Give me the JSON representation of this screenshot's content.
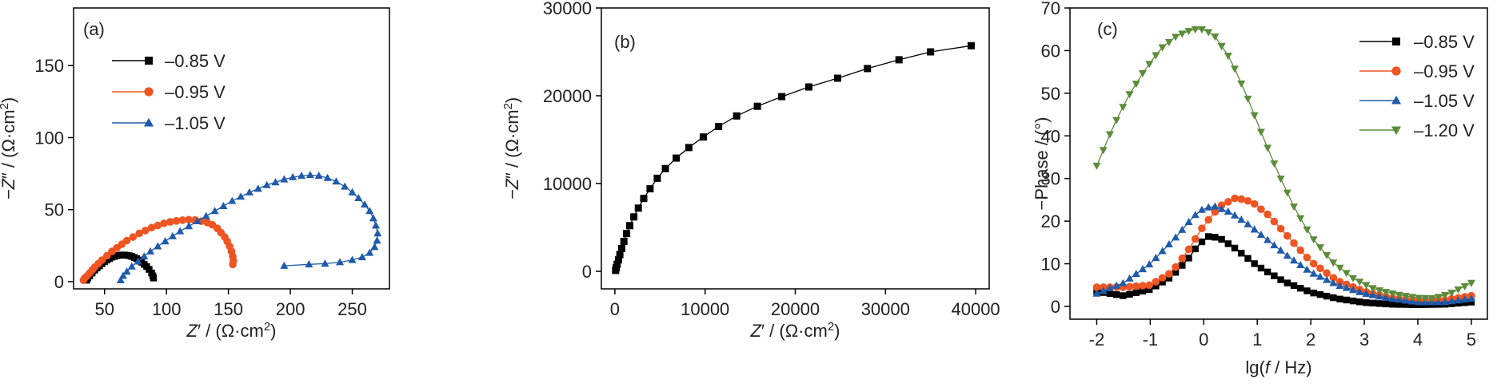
{
  "chart_data": [
    {
      "type": "scatter",
      "panel_label": "(a)",
      "xlabel_parts": [
        "Z",
        "′ / (Ω·cm",
        "2",
        ")"
      ],
      "ylabel_parts": [
        "−Z",
        "″ / (Ω·cm",
        "2",
        ")"
      ],
      "xlim": [
        25,
        280
      ],
      "ylim": [
        -5,
        190
      ],
      "xticks": [
        50,
        100,
        150,
        200,
        250
      ],
      "yticks": [
        0,
        50,
        100,
        150
      ],
      "legend_position": "top-left",
      "series": [
        {
          "name": "–0.85 V",
          "color": "#000000",
          "marker": "square",
          "points": [
            [
              35.5,
              1
            ],
            [
              36.5,
              2.5
            ],
            [
              38,
              4
            ],
            [
              40,
              6
            ],
            [
              42,
              8
            ],
            [
              44,
              9.5
            ],
            [
              46,
              11
            ],
            [
              48,
              12.5
            ],
            [
              50,
              14
            ],
            [
              52,
              15
            ],
            [
              54,
              16
            ],
            [
              56,
              17
            ],
            [
              58,
              17.5
            ],
            [
              60,
              18
            ],
            [
              62,
              18.3
            ],
            [
              64,
              18.5
            ],
            [
              66,
              18.5
            ],
            [
              68,
              18.3
            ],
            [
              70,
              18
            ],
            [
              72,
              17.5
            ],
            [
              74,
              16.8
            ],
            [
              76,
              16
            ],
            [
              78,
              15
            ],
            [
              80,
              13.5
            ],
            [
              82,
              12
            ],
            [
              84,
              10.5
            ],
            [
              86,
              8.5
            ],
            [
              88,
              6
            ],
            [
              89,
              4
            ],
            [
              89.5,
              2.5
            ]
          ]
        },
        {
          "name": "–0.95 V",
          "color": "#EE5522",
          "marker": "circle",
          "points": [
            [
              33,
              1
            ],
            [
              34,
              2.5
            ],
            [
              36,
              4
            ],
            [
              38,
              6
            ],
            [
              40,
              8
            ],
            [
              42,
              10
            ],
            [
              45,
              12.5
            ],
            [
              48,
              15
            ],
            [
              52,
              18
            ],
            [
              56,
              21
            ],
            [
              60,
              23.5
            ],
            [
              64,
              26
            ],
            [
              68,
              28.5
            ],
            [
              73,
              31
            ],
            [
              78,
              33.5
            ],
            [
              83,
              35.5
            ],
            [
              88,
              37.5
            ],
            [
              93,
              39
            ],
            [
              98,
              40.5
            ],
            [
              103,
              41.5
            ],
            [
              108,
              42.2
            ],
            [
              113,
              42.7
            ],
            [
              118,
              43
            ],
            [
              123,
              42.8
            ],
            [
              128,
              42
            ],
            [
              133,
              41
            ],
            [
              137,
              39.5
            ],
            [
              141,
              37
            ],
            [
              144,
              34
            ],
            [
              147,
              31
            ],
            [
              149,
              28
            ],
            [
              151,
              24.5
            ],
            [
              152.5,
              21
            ],
            [
              153.5,
              17.5
            ],
            [
              154,
              14.5
            ],
            [
              153.5,
              12
            ]
          ]
        },
        {
          "name": "–1.05 V",
          "color": "#1F5BAA",
          "marker": "triangle-up",
          "points": [
            [
              63,
              1
            ],
            [
              65,
              4
            ],
            [
              68,
              7
            ],
            [
              72,
              10.5
            ],
            [
              77,
              14
            ],
            [
              82,
              17.5
            ],
            [
              87,
              21
            ],
            [
              93,
              24.5
            ],
            [
              99,
              28
            ],
            [
              105,
              31.5
            ],
            [
              111,
              35
            ],
            [
              118,
              38.5
            ],
            [
              125,
              42
            ],
            [
              132,
              45.5
            ],
            [
              139,
              49
            ],
            [
              146,
              52.5
            ],
            [
              153,
              56
            ],
            [
              160,
              59
            ],
            [
              167,
              62
            ],
            [
              174,
              64.5
            ],
            [
              181,
              67
            ],
            [
              188,
              69
            ],
            [
              195,
              71
            ],
            [
              202,
              72.5
            ],
            [
              209,
              73.5
            ],
            [
              216,
              74
            ],
            [
              223,
              73.5
            ],
            [
              230,
              72
            ],
            [
              237,
              69.5
            ],
            [
              244,
              66
            ],
            [
              250,
              62
            ],
            [
              255,
              58
            ],
            [
              260,
              53.5
            ],
            [
              264,
              49
            ],
            [
              267,
              44
            ],
            [
              269,
              39
            ],
            [
              270.5,
              33.5
            ],
            [
              270,
              28.5
            ],
            [
              268,
              24
            ],
            [
              264,
              20
            ],
            [
              258,
              17
            ],
            [
              250,
              15
            ],
            [
              240,
              13.5
            ],
            [
              228,
              12.5
            ],
            [
              215,
              12
            ],
            [
              195,
              11
            ]
          ]
        }
      ]
    },
    {
      "type": "line",
      "panel_label": "(b)",
      "xlabel_parts": [
        "Z",
        "′ / (Ω·cm",
        "2",
        ")"
      ],
      "ylabel_parts": [
        "−Z",
        "″ / (Ω·cm",
        "2",
        ")"
      ],
      "xlim": [
        -1500,
        41500
      ],
      "ylim": [
        -2000,
        30000
      ],
      "xticks": [
        0,
        10000,
        20000,
        30000,
        40000
      ],
      "yticks": [
        0,
        10000,
        20000,
        30000
      ],
      "series": [
        {
          "name": "",
          "color": "#000000",
          "marker": "square",
          "points": [
            [
              80,
              100
            ],
            [
              150,
              400
            ],
            [
              250,
              800
            ],
            [
              400,
              1300
            ],
            [
              550,
              1900
            ],
            [
              750,
              2600
            ],
            [
              1000,
              3400
            ],
            [
              1300,
              4300
            ],
            [
              1650,
              5200
            ],
            [
              2100,
              6200
            ],
            [
              2600,
              7200
            ],
            [
              3200,
              8300
            ],
            [
              3900,
              9400
            ],
            [
              4700,
              10600
            ],
            [
              5600,
              11700
            ],
            [
              6800,
              12900
            ],
            [
              8200,
              14100
            ],
            [
              9800,
              15300
            ],
            [
              11500,
              16500
            ],
            [
              13500,
              17700
            ],
            [
              15800,
              18800
            ],
            [
              18500,
              19900
            ],
            [
              21500,
              21000
            ],
            [
              24700,
              22000
            ],
            [
              28000,
              23100
            ],
            [
              31500,
              24100
            ],
            [
              35000,
              25000
            ],
            [
              39500,
              25700
            ]
          ]
        }
      ]
    },
    {
      "type": "scatter",
      "panel_label": "(c)",
      "xlabel_parts": [
        "lg(",
        "f",
        " / Hz)"
      ],
      "ylabel_parts": [
        "−Phase / (°)"
      ],
      "xlim": [
        -2.5,
        5.3
      ],
      "ylim": [
        -3,
        70
      ],
      "xticks": [
        -2,
        -1,
        0,
        1,
        2,
        3,
        4,
        5
      ],
      "yticks": [
        0,
        10,
        20,
        30,
        40,
        50,
        60,
        70
      ],
      "legend_position": "top-right",
      "series": [
        {
          "name": "–0.85 V",
          "color": "#000000",
          "marker": "square",
          "curve": [
            [
              -2.0,
              3.5
            ],
            [
              -1.5,
              2.5
            ],
            [
              -1.0,
              4.0
            ],
            [
              -0.6,
              7.0
            ],
            [
              -0.3,
              11.0
            ],
            [
              -0.1,
              14.5
            ],
            [
              0.1,
              16.5
            ],
            [
              0.3,
              16.0
            ],
            [
              0.6,
              13.5
            ],
            [
              1.0,
              9.5
            ],
            [
              1.5,
              5.8
            ],
            [
              2.0,
              3.3
            ],
            [
              2.5,
              1.8
            ],
            [
              3.0,
              0.9
            ],
            [
              3.5,
              0.5
            ],
            [
              4.0,
              0.4
            ],
            [
              4.5,
              0.5
            ],
            [
              5.0,
              1.0
            ]
          ]
        },
        {
          "name": "–0.95 V",
          "color": "#EE5522",
          "marker": "circle",
          "curve": [
            [
              -2.0,
              4.5
            ],
            [
              -1.5,
              4.5
            ],
            [
              -1.0,
              5.0
            ],
            [
              -0.6,
              8.0
            ],
            [
              -0.3,
              13.0
            ],
            [
              0.0,
              19.0
            ],
            [
              0.3,
              23.5
            ],
            [
              0.6,
              25.5
            ],
            [
              0.9,
              24.5
            ],
            [
              1.2,
              21.5
            ],
            [
              1.6,
              16.0
            ],
            [
              2.0,
              10.5
            ],
            [
              2.5,
              6.0
            ],
            [
              3.0,
              3.5
            ],
            [
              3.5,
              2.0
            ],
            [
              4.0,
              1.3
            ],
            [
              4.5,
              1.5
            ],
            [
              5.0,
              2.5
            ]
          ]
        },
        {
          "name": "–1.05 V",
          "color": "#1F5BAA",
          "marker": "triangle-up",
          "curve": [
            [
              -2.0,
              3.0
            ],
            [
              -1.5,
              5.5
            ],
            [
              -1.0,
              10.0
            ],
            [
              -0.5,
              16.5
            ],
            [
              -0.2,
              21.0
            ],
            [
              0.0,
              23.0
            ],
            [
              0.2,
              23.5
            ],
            [
              0.5,
              22.0
            ],
            [
              0.8,
              19.5
            ],
            [
              1.2,
              15.5
            ],
            [
              1.6,
              11.5
            ],
            [
              2.0,
              8.0
            ],
            [
              2.5,
              5.0
            ],
            [
              3.0,
              3.0
            ],
            [
              3.5,
              1.8
            ],
            [
              4.0,
              1.0
            ],
            [
              4.5,
              1.0
            ],
            [
              5.0,
              1.8
            ]
          ]
        },
        {
          "name": "–1.20 V",
          "color": "#5C8B3A",
          "marker": "triangle-down",
          "curve": [
            [
              -2.0,
              33.0
            ],
            [
              -1.7,
              42.0
            ],
            [
              -1.4,
              49.5
            ],
            [
              -1.1,
              55.5
            ],
            [
              -0.8,
              60.5
            ],
            [
              -0.5,
              63.5
            ],
            [
              -0.2,
              65.0
            ],
            [
              0.0,
              65.0
            ],
            [
              0.2,
              63.5
            ],
            [
              0.5,
              58.0
            ],
            [
              0.8,
              49.5
            ],
            [
              1.1,
              40.0
            ],
            [
              1.4,
              31.0
            ],
            [
              1.7,
              23.0
            ],
            [
              2.0,
              16.5
            ],
            [
              2.4,
              10.5
            ],
            [
              2.8,
              6.5
            ],
            [
              3.2,
              4.0
            ],
            [
              3.6,
              2.8
            ],
            [
              4.0,
              2.0
            ],
            [
              4.3,
              1.9
            ],
            [
              4.6,
              3.0
            ],
            [
              5.0,
              5.5
            ]
          ]
        }
      ]
    }
  ]
}
